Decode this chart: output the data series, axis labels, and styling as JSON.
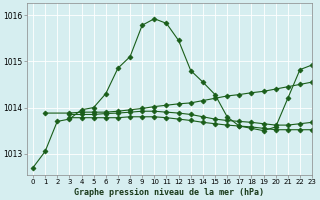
{
  "background_color": "#d6eef0",
  "grid_color": "#ffffff",
  "line_color": "#1a5e1a",
  "title": "Graphe pression niveau de la mer (hPa)",
  "xlim": [
    -0.5,
    23
  ],
  "ylim": [
    1012.55,
    1016.25
  ],
  "yticks": [
    1013,
    1014,
    1015,
    1016
  ],
  "xticks": [
    0,
    1,
    2,
    3,
    4,
    5,
    6,
    7,
    8,
    9,
    10,
    11,
    12,
    13,
    14,
    15,
    16,
    17,
    18,
    19,
    20,
    21,
    22,
    23
  ],
  "series": [
    {
      "x": [
        0,
        1,
        2,
        3,
        4,
        5,
        6,
        7,
        8,
        9,
        10,
        11,
        12,
        13,
        14,
        15,
        16,
        17,
        18,
        19,
        20,
        21,
        22,
        23
      ],
      "y": [
        1012.7,
        1013.05,
        1013.7,
        1013.75,
        1013.95,
        1014.0,
        1014.3,
        1014.85,
        1015.1,
        1015.78,
        1015.92,
        1015.82,
        1015.45,
        1014.8,
        1014.55,
        1014.28,
        1013.8,
        1013.6,
        1013.55,
        1013.5,
        1013.58,
        1014.2,
        1014.82,
        1014.92
      ],
      "style": "solid",
      "marker": "D",
      "markersize": 2.5
    },
    {
      "x": [
        1,
        3,
        4,
        5,
        6,
        7,
        8,
        9,
        10,
        11,
        12,
        13,
        14,
        15,
        16,
        17,
        18,
        19,
        20,
        21,
        22,
        23
      ],
      "y": [
        1013.88,
        1013.88,
        1013.9,
        1013.9,
        1013.9,
        1013.92,
        1013.95,
        1013.98,
        1014.02,
        1014.05,
        1014.08,
        1014.1,
        1014.15,
        1014.2,
        1014.25,
        1014.28,
        1014.32,
        1014.35,
        1014.4,
        1014.45,
        1014.5,
        1014.55
      ],
      "style": "solid",
      "marker": "D",
      "markersize": 2.5
    },
    {
      "x": [
        3,
        4,
        5,
        6,
        7,
        8,
        9,
        10,
        11,
        12,
        13,
        14,
        15,
        16,
        17,
        18,
        19,
        20,
        21,
        22,
        23
      ],
      "y": [
        1013.78,
        1013.78,
        1013.78,
        1013.78,
        1013.78,
        1013.8,
        1013.8,
        1013.8,
        1013.78,
        1013.75,
        1013.72,
        1013.68,
        1013.65,
        1013.62,
        1013.6,
        1013.58,
        1013.55,
        1013.52,
        1013.52,
        1013.52,
        1013.52
      ],
      "style": "solid",
      "marker": "D",
      "markersize": 2.5
    },
    {
      "x": [
        3,
        4,
        5,
        6,
        7,
        8,
        9,
        10,
        11,
        12,
        13,
        14,
        15,
        16,
        17,
        18,
        19,
        20,
        21,
        22,
        23
      ],
      "y": [
        1013.85,
        1013.85,
        1013.85,
        1013.87,
        1013.88,
        1013.9,
        1013.92,
        1013.92,
        1013.9,
        1013.88,
        1013.85,
        1013.8,
        1013.75,
        1013.72,
        1013.7,
        1013.68,
        1013.65,
        1013.62,
        1013.62,
        1013.65,
        1013.68
      ],
      "style": "solid",
      "marker": "D",
      "markersize": 2.5
    }
  ]
}
